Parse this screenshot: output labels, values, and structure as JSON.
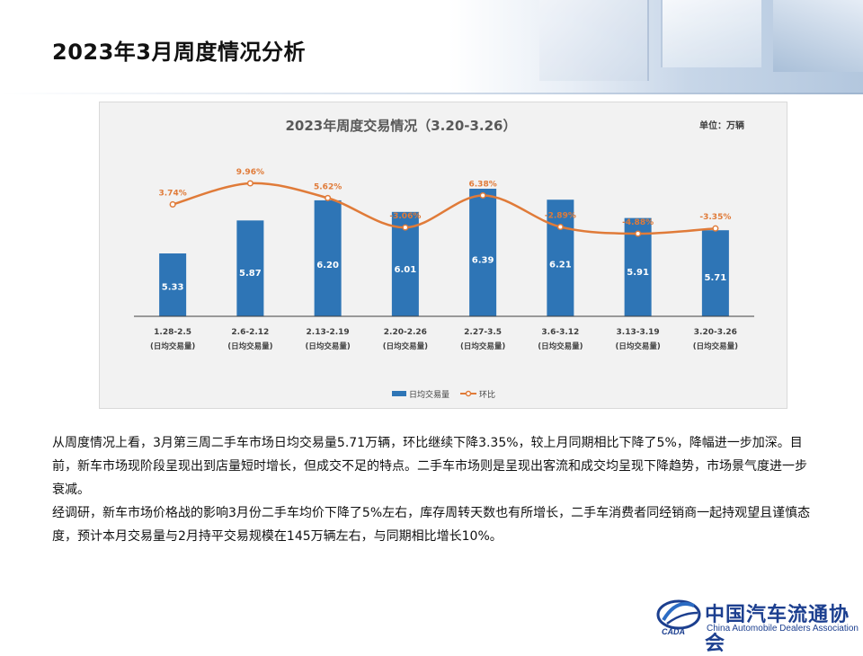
{
  "page": {
    "title": "2023年3月周度情况分析"
  },
  "chart_data": {
    "type": "bar",
    "title": "2023年周度交易情况（3.20-3.26）",
    "unit_label": "单位：万辆",
    "categories": [
      "1.28-2.5",
      "2.6-2.12",
      "2.13-2.19",
      "2.20-2.26",
      "2.27-3.5",
      "3.6-3.12",
      "3.13-3.19",
      "3.20-3.26"
    ],
    "category_sublabel": "(日均交易量)",
    "series": [
      {
        "name": "日均交易量",
        "kind": "bar",
        "color": "#2e75b6",
        "values": [
          5.33,
          5.87,
          6.2,
          6.01,
          6.39,
          6.21,
          5.91,
          5.71
        ],
        "labels": [
          "5.33",
          "5.87",
          "6.20",
          "6.01",
          "6.39",
          "6.21",
          "5.91",
          "5.71"
        ]
      },
      {
        "name": "环比",
        "kind": "line",
        "color": "#e07b39",
        "values": [
          3.74,
          9.96,
          5.62,
          -3.06,
          6.38,
          -2.89,
          -4.88,
          -3.35
        ],
        "labels": [
          "3.74%",
          "9.96%",
          "5.62%",
          "-3.06%",
          "6.38%",
          "-2.89%",
          "-4.88%",
          "-3.35%"
        ]
      }
    ],
    "legend": {
      "position": "bottom",
      "bar_label": "日均交易量",
      "line_label": "环比"
    },
    "grid": false
  },
  "body": {
    "paragraphs": [
      "从周度情况上看，3月第三周二手车市场日均交易量5.71万辆，环比继续下降3.35%，较上月同期相比下降了5%，降幅进一步加深。目前，新车市场现阶段呈现出到店量短时增长，但成交不足的特点。二手车市场则是呈现出客流和成交均呈现下降趋势，市场景气度进一步衰减。",
      "经调研，新车市场价格战的影响3月份二手车均价下降了5%左右，库存周转天数也有所增长，二手车消费者同经销商一起持观望且谨慎态度，预计本月交易量与2月持平交易规模在145万辆左右，与同期相比增长10%。"
    ]
  },
  "logo": {
    "cn_name": "中国汽车流通协会",
    "en_name": "China Automobile Dealers Association",
    "abbr": "CADA",
    "color": "#1c3f8f"
  }
}
